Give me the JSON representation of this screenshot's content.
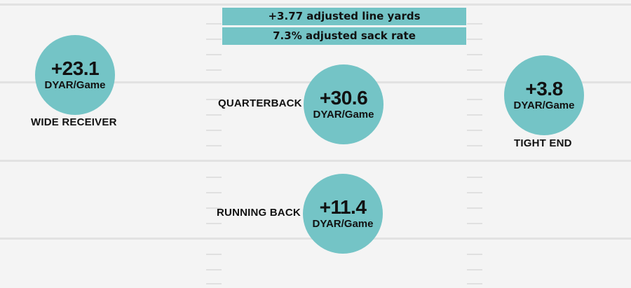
{
  "banner": {
    "line_yards": "+3.77 adjusted line yards",
    "sack_rate": "7.3% adjusted sack rate"
  },
  "positions": {
    "wide_receiver": {
      "value": "+23.1",
      "unit": "DYAR/Game",
      "label": "WIDE RECEIVER"
    },
    "quarterback": {
      "value": "+30.6",
      "unit": "DYAR/Game",
      "label": "QUARTERBACK"
    },
    "tight_end": {
      "value": "+3.8",
      "unit": "DYAR/Game",
      "label": "TIGHT END"
    },
    "running_back": {
      "value": "+11.4",
      "unit": "DYAR/Game",
      "label": "RUNNING BACK"
    }
  },
  "colors": {
    "circle": "#74c4c6",
    "background": "#f4f4f4",
    "text": "#111111",
    "field_lines": "#e2e2e2"
  }
}
